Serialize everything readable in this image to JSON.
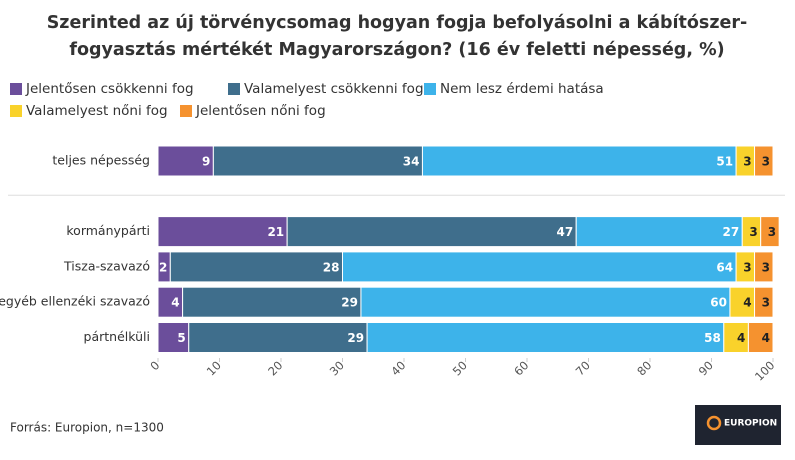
{
  "chart_data": {
    "type": "stacked-bar-horizontal",
    "title": [
      "Szerinted az új törvénycsomag hogyan fogja befolyásolni a kábítószer-",
      "fogyasztás mértékét Magyarországon? (16 év feletti népesség, %)"
    ],
    "categories": [
      "teljes népesség",
      null,
      "kormánypárti",
      "Tisza-szavazó",
      "egyéb ellenzéki szavazó",
      "pártnélküli"
    ],
    "series": [
      {
        "name": "Jelentősen csökkenni fog",
        "color": "#6b4e9b",
        "values": [
          9,
          null,
          21,
          2,
          4,
          5
        ]
      },
      {
        "name": "Valamelyest csökkenni fog",
        "color": "#3f6e8c",
        "values": [
          34,
          null,
          47,
          28,
          29,
          29
        ]
      },
      {
        "name": "Nem lesz érdemi hatása",
        "color": "#3db3ea",
        "values": [
          51,
          null,
          27,
          64,
          60,
          58
        ]
      },
      {
        "name": "Valamelyest nőni fog",
        "color": "#f9d22b",
        "values": [
          3,
          null,
          3,
          3,
          4,
          4
        ]
      },
      {
        "name": "Jelentősen nőni fog",
        "color": "#f5922f",
        "values": [
          3,
          null,
          3,
          3,
          3,
          4
        ]
      }
    ],
    "xlim": [
      0,
      100
    ],
    "xticks": [
      0,
      10,
      20,
      30,
      40,
      50,
      60,
      70,
      80,
      90,
      100
    ],
    "source": "Forrás: Europion, n=1300",
    "logo": "EUROPION"
  }
}
